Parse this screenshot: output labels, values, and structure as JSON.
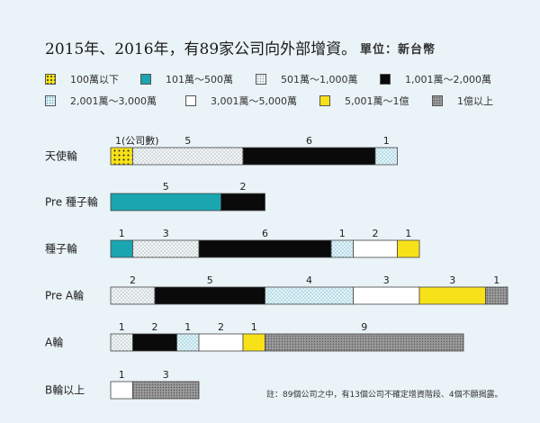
{
  "title": "2015年、2016年，有89家公司向外部增資。",
  "unit": "單位：新台幣",
  "note": "註：89個公司之中，有13個公司不確定增資階段、4個不願揭露。",
  "legend": [
    {
      "label": "100萬以下",
      "pattern": "dots-yellow"
    },
    {
      "label": "101萬～500萬",
      "pattern": "teal"
    },
    {
      "label": "501萬～1,000萬",
      "pattern": "light-dots"
    },
    {
      "label": "1,001萬～2,000萬",
      "pattern": "black"
    },
    {
      "label": "2,001萬～3,000萬",
      "pattern": "blue-dots"
    },
    {
      "label": "3,001萬～5,000萬",
      "pattern": "white"
    },
    {
      "label": "5,001萬～1億",
      "pattern": "yellow"
    },
    {
      "label": "1億以上",
      "pattern": "gray-dots"
    }
  ],
  "colors": {
    "teal": "#1aa6b0",
    "black": "#0a0a0a",
    "yellow": "#f7e219",
    "white": "#ffffff",
    "background": "#eaf3f7"
  },
  "chart_data": {
    "type": "bar",
    "orientation": "horizontal",
    "stacked": true,
    "title": "2015年、2016年，有89家公司向外部增資。",
    "value_label": "公司數",
    "first_label_note": "1(公司數)",
    "categories": [
      "天使輪",
      "Pre 種子輪",
      "種子輪",
      "Pre A輪",
      "A輪",
      "B輪以上"
    ],
    "series": [
      {
        "name": "100萬以下",
        "values": [
          1,
          0,
          0,
          0,
          0,
          0
        ]
      },
      {
        "name": "101萬～500萬",
        "values": [
          0,
          5,
          1,
          0,
          0,
          0
        ]
      },
      {
        "name": "501萬～1,000萬",
        "values": [
          5,
          0,
          3,
          2,
          1,
          0
        ]
      },
      {
        "name": "1,001萬～2,000萬",
        "values": [
          6,
          2,
          6,
          5,
          2,
          0
        ]
      },
      {
        "name": "2,001萬～3,000萬",
        "values": [
          1,
          0,
          1,
          4,
          1,
          0
        ]
      },
      {
        "name": "3,001萬～5,000萬",
        "values": [
          0,
          0,
          2,
          3,
          2,
          1
        ]
      },
      {
        "name": "5,001萬～1億",
        "values": [
          0,
          0,
          1,
          3,
          1,
          0
        ]
      },
      {
        "name": "1億以上",
        "values": [
          0,
          0,
          0,
          1,
          9,
          3
        ]
      }
    ]
  }
}
